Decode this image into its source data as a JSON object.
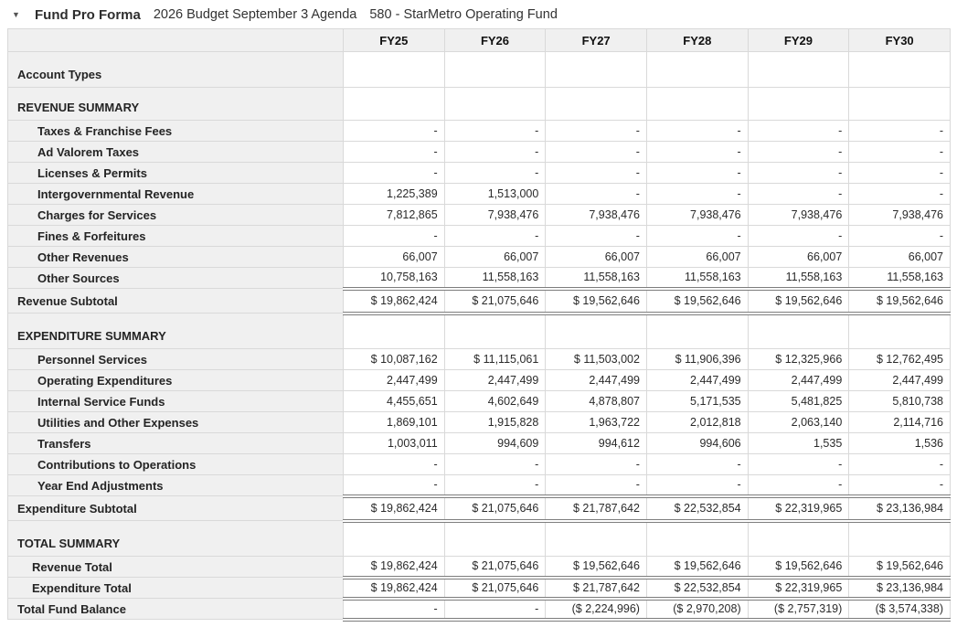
{
  "header": {
    "caret_icon": "▼",
    "title": "Fund Pro Forma",
    "budget_cycle": "2026 Budget September 3 Agenda",
    "fund": "580 - StarMetro Operating Fund"
  },
  "colors": {
    "header_bg": "#f0f0f0",
    "label_bg": "#f0f0f0",
    "border": "#d9d9d9",
    "rule": "#7d7d7d",
    "text": "#222222"
  },
  "table": {
    "columns": [
      "FY25",
      "FY26",
      "FY27",
      "FY28",
      "FY29",
      "FY30"
    ],
    "rows": [
      {
        "label": "Account Types",
        "type": "section",
        "tall": true,
        "values": [
          "",
          "",
          "",
          "",
          "",
          ""
        ]
      },
      {
        "label": "REVENUE SUMMARY",
        "type": "section",
        "values": [
          "",
          "",
          "",
          "",
          "",
          ""
        ]
      },
      {
        "label": "Taxes & Franchise Fees",
        "type": "item",
        "values": [
          "-",
          "-",
          "-",
          "-",
          "-",
          "-"
        ]
      },
      {
        "label": "Ad Valorem Taxes",
        "type": "item",
        "values": [
          "-",
          "-",
          "-",
          "-",
          "-",
          "-"
        ]
      },
      {
        "label": "Licenses & Permits",
        "type": "item",
        "values": [
          "-",
          "-",
          "-",
          "-",
          "-",
          "-"
        ]
      },
      {
        "label": "Intergovernmental Revenue",
        "type": "item",
        "values": [
          "1,225,389",
          "1,513,000",
          "-",
          "-",
          "-",
          "-"
        ]
      },
      {
        "label": "Charges for Services",
        "type": "item",
        "values": [
          "7,812,865",
          "7,938,476",
          "7,938,476",
          "7,938,476",
          "7,938,476",
          "7,938,476"
        ]
      },
      {
        "label": "Fines & Forfeitures",
        "type": "item",
        "values": [
          "-",
          "-",
          "-",
          "-",
          "-",
          "-"
        ]
      },
      {
        "label": "Other Revenues",
        "type": "item",
        "values": [
          "66,007",
          "66,007",
          "66,007",
          "66,007",
          "66,007",
          "66,007"
        ]
      },
      {
        "label": "Other Sources",
        "type": "item",
        "rule": true,
        "values": [
          "10,758,163",
          "11,558,163",
          "11,558,163",
          "11,558,163",
          "11,558,163",
          "11,558,163"
        ]
      },
      {
        "label": "Revenue Subtotal",
        "type": "subtotal",
        "rule": true,
        "values": [
          "$ 19,862,424",
          "$ 21,075,646",
          "$ 19,562,646",
          "$ 19,562,646",
          "$ 19,562,646",
          "$ 19,562,646"
        ]
      },
      {
        "label": "EXPENDITURE SUMMARY",
        "type": "section",
        "tall": true,
        "values": [
          "",
          "",
          "",
          "",
          "",
          ""
        ]
      },
      {
        "label": "Personnel Services",
        "type": "item",
        "values": [
          "$ 10,087,162",
          "$ 11,115,061",
          "$ 11,503,002",
          "$ 11,906,396",
          "$ 12,325,966",
          "$ 12,762,495"
        ]
      },
      {
        "label": "Operating Expenditures",
        "type": "item",
        "values": [
          "2,447,499",
          "2,447,499",
          "2,447,499",
          "2,447,499",
          "2,447,499",
          "2,447,499"
        ]
      },
      {
        "label": "Internal Service Funds",
        "type": "item",
        "values": [
          "4,455,651",
          "4,602,649",
          "4,878,807",
          "5,171,535",
          "5,481,825",
          "5,810,738"
        ]
      },
      {
        "label": "Utilities and Other Expenses",
        "type": "item",
        "values": [
          "1,869,101",
          "1,915,828",
          "1,963,722",
          "2,012,818",
          "2,063,140",
          "2,114,716"
        ]
      },
      {
        "label": "Transfers",
        "type": "item",
        "values": [
          "1,003,011",
          "994,609",
          "994,612",
          "994,606",
          "1,535",
          "1,536"
        ]
      },
      {
        "label": "Contributions to Operations",
        "type": "item",
        "values": [
          "-",
          "-",
          "-",
          "-",
          "-",
          "-"
        ]
      },
      {
        "label": "Year End Adjustments",
        "type": "item",
        "rule": true,
        "values": [
          "-",
          "-",
          "-",
          "-",
          "-",
          "-"
        ]
      },
      {
        "label": "Expenditure Subtotal",
        "type": "subtotal",
        "rule": true,
        "values": [
          "$ 19,862,424",
          "$ 21,075,646",
          "$ 21,787,642",
          "$ 22,532,854",
          "$ 22,319,965",
          "$ 23,136,984"
        ]
      },
      {
        "label": "TOTAL SUMMARY",
        "type": "section",
        "tall": true,
        "values": [
          "",
          "",
          "",
          "",
          "",
          ""
        ]
      },
      {
        "label": "Revenue Total",
        "type": "total-item",
        "rule": true,
        "values": [
          "$ 19,862,424",
          "$ 21,075,646",
          "$ 19,562,646",
          "$ 19,562,646",
          "$ 19,562,646",
          "$ 19,562,646"
        ]
      },
      {
        "label": "Expenditure Total",
        "type": "total-item",
        "rule": true,
        "values": [
          "$ 19,862,424",
          "$ 21,075,646",
          "$ 21,787,642",
          "$ 22,532,854",
          "$ 22,319,965",
          "$ 23,136,984"
        ]
      },
      {
        "label": "Total Fund Balance",
        "type": "total",
        "rule": true,
        "values": [
          "-",
          "-",
          "($ 2,224,996)",
          "($ 2,970,208)",
          "($ 2,757,319)",
          "($ 3,574,338)"
        ]
      }
    ]
  }
}
